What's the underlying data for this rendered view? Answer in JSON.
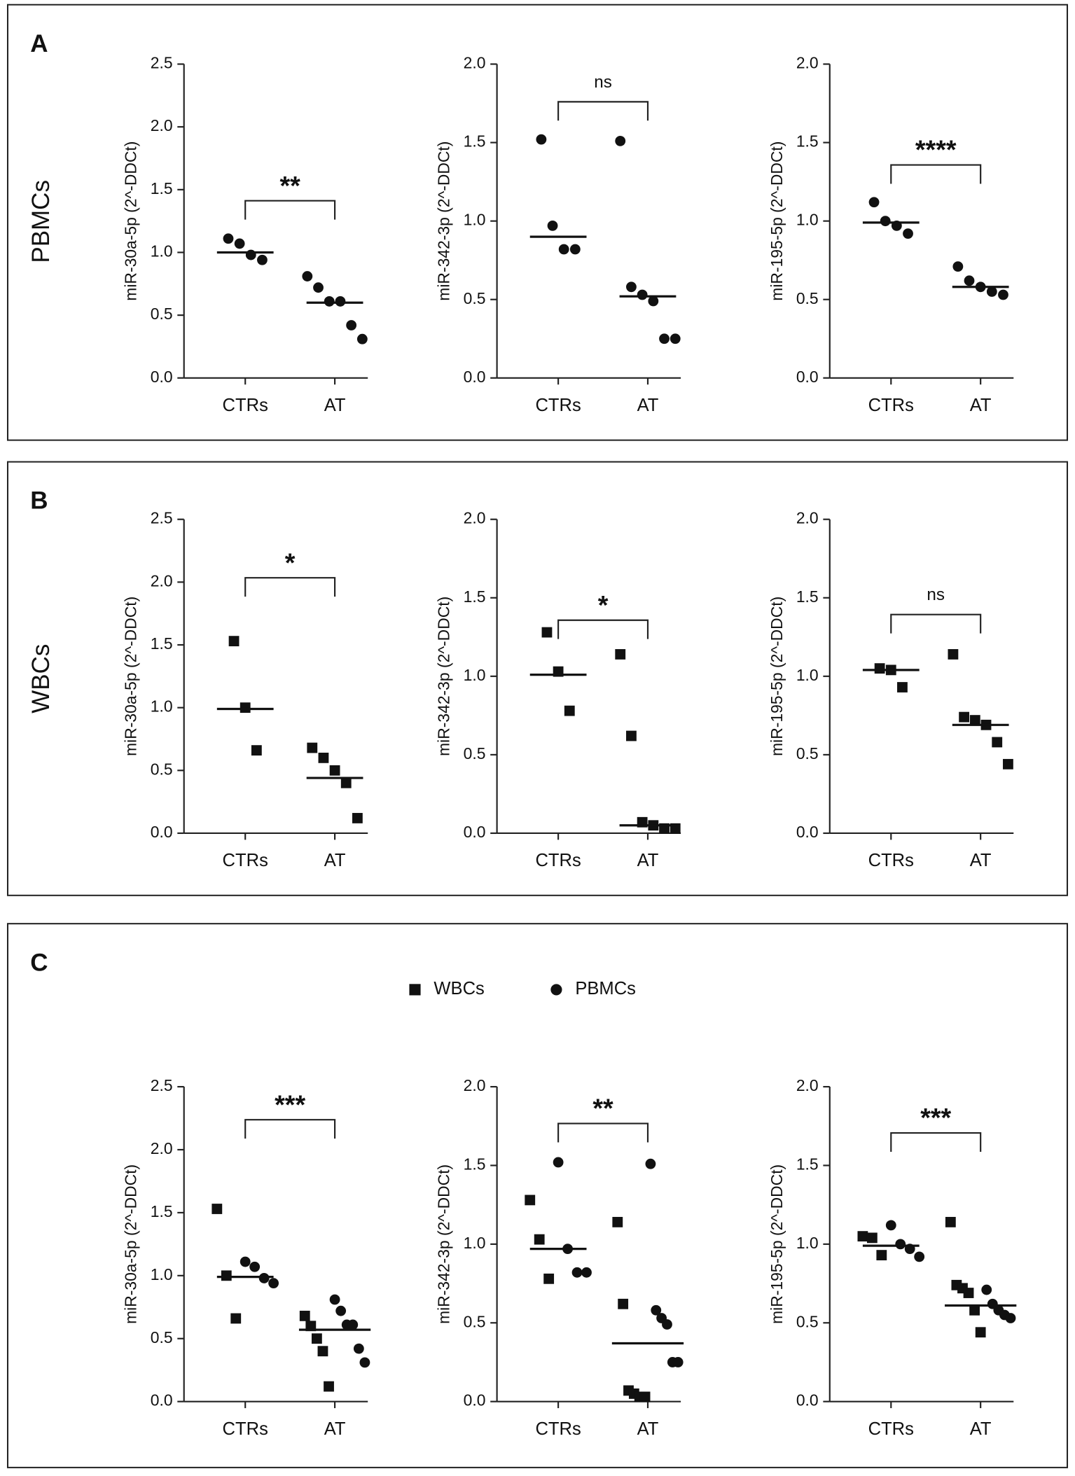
{
  "panels": [
    {
      "label": "A",
      "row_label": "PBMCs"
    },
    {
      "label": "B",
      "row_label": "WBCs"
    },
    {
      "label": "C",
      "legend": [
        {
          "name": "WBCs",
          "marker": "square"
        },
        {
          "name": "PBMCs",
          "marker": "circle"
        }
      ]
    }
  ],
  "chart_data": [
    {
      "type": "dot",
      "ylabel": "miR-30a-5p (2^-DDCt)",
      "categories": [
        "CTRs",
        "AT"
      ],
      "ylim": [
        0,
        2.5
      ],
      "yticks": [
        {
          "value": 0,
          "label": "0.0"
        },
        0.5,
        {
          "value": 1,
          "label": "1.0"
        },
        1.5,
        {
          "value": 2,
          "label": "2.0"
        },
        2.5
      ],
      "series": [
        {
          "marker": "circle",
          "values": [
            [
              1.11,
              1.07,
              0.98,
              0.94
            ],
            [
              0.81,
              0.72,
              0.61,
              0.61,
              0.42,
              0.31
            ]
          ]
        }
      ],
      "medians": [
        1.0,
        0.6
      ],
      "significance": "**"
    },
    {
      "type": "dot",
      "ylabel": "miR-342-3p (2^-DDCt)",
      "categories": [
        "CTRs",
        "AT"
      ],
      "ylim": [
        0,
        2
      ],
      "yticks": [
        {
          "value": 0,
          "label": "0.0"
        },
        0.5,
        {
          "value": 1,
          "label": "1.0"
        },
        1.5,
        {
          "value": 2,
          "label": "2.0"
        }
      ],
      "series": [
        {
          "marker": "circle",
          "values": [
            [
              1.52,
              0.97,
              0.82,
              0.82
            ],
            [
              1.51,
              0.58,
              0.53,
              0.49,
              0.25,
              0.25
            ]
          ]
        }
      ],
      "medians": [
        0.9,
        0.52
      ],
      "significance": "ns"
    },
    {
      "type": "dot",
      "ylabel": "miR-195-5p (2^-DDCt)",
      "categories": [
        "CTRs",
        "AT"
      ],
      "ylim": [
        0,
        2
      ],
      "yticks": [
        {
          "value": 0,
          "label": "0.0"
        },
        0.5,
        {
          "value": 1,
          "label": "1.0"
        },
        1.5,
        {
          "value": 2,
          "label": "2.0"
        }
      ],
      "series": [
        {
          "marker": "circle",
          "values": [
            [
              1.12,
              1.0,
              0.97,
              0.92
            ],
            [
              0.71,
              0.62,
              0.58,
              0.55,
              0.53
            ]
          ]
        }
      ],
      "medians": [
        0.99,
        0.58
      ],
      "significance": "****"
    },
    {
      "type": "dot",
      "ylabel": "miR-30a-5p (2^-DDCt)",
      "categories": [
        "CTRs",
        "AT"
      ],
      "ylim": [
        0,
        2.5
      ],
      "yticks": [
        {
          "value": 0,
          "label": "0.0"
        },
        0.5,
        {
          "value": 1,
          "label": "1.0"
        },
        1.5,
        {
          "value": 2,
          "label": "2.0"
        },
        2.5
      ],
      "series": [
        {
          "marker": "square",
          "values": [
            [
              1.53,
              1.0,
              0.66
            ],
            [
              0.68,
              0.6,
              0.5,
              0.4,
              0.12
            ]
          ]
        }
      ],
      "medians": [
        0.99,
        0.44
      ],
      "significance": "*"
    },
    {
      "type": "dot",
      "ylabel": "miR-342-3p (2^-DDCt)",
      "categories": [
        "CTRs",
        "AT"
      ],
      "ylim": [
        0,
        2
      ],
      "yticks": [
        {
          "value": 0,
          "label": "0.0"
        },
        0.5,
        {
          "value": 1,
          "label": "1.0"
        },
        1.5,
        {
          "value": 2,
          "label": "2.0"
        }
      ],
      "series": [
        {
          "marker": "square",
          "values": [
            [
              1.28,
              1.03,
              0.78
            ],
            [
              1.14,
              0.62,
              0.07,
              0.05,
              0.03,
              0.03
            ]
          ]
        }
      ],
      "medians": [
        1.01,
        0.05
      ],
      "significance": "*"
    },
    {
      "type": "dot",
      "ylabel": "miR-195-5p (2^-DDCt)",
      "categories": [
        "CTRs",
        "AT"
      ],
      "ylim": [
        0,
        2
      ],
      "yticks": [
        {
          "value": 0,
          "label": "0.0"
        },
        0.5,
        {
          "value": 1,
          "label": "1.0"
        },
        1.5,
        {
          "value": 2,
          "label": "2.0"
        }
      ],
      "series": [
        {
          "marker": "square",
          "values": [
            [
              1.05,
              1.04,
              0.93
            ],
            [
              1.14,
              0.74,
              0.72,
              0.69,
              0.58,
              0.44
            ]
          ]
        }
      ],
      "medians": [
        1.04,
        0.69
      ],
      "significance": "ns"
    },
    {
      "type": "dot",
      "ylabel": "miR-30a-5p (2^-DDCt)",
      "categories": [
        "CTRs",
        "AT"
      ],
      "ylim": [
        0,
        2.5
      ],
      "yticks": [
        {
          "value": 0,
          "label": "0.0"
        },
        0.5,
        {
          "value": 1,
          "label": "1.0"
        },
        1.5,
        {
          "value": 2,
          "label": "2.0"
        },
        2.5
      ],
      "series": [
        {
          "marker": "square",
          "values": [
            [
              1.53,
              1.0,
              0.66
            ],
            [
              0.68,
              0.6,
              0.5,
              0.4,
              0.12
            ]
          ]
        },
        {
          "marker": "circle",
          "values": [
            [
              1.11,
              1.07,
              0.98,
              0.94
            ],
            [
              0.81,
              0.72,
              0.61,
              0.61,
              0.42,
              0.31
            ]
          ]
        }
      ],
      "medians": [
        0.99,
        0.57
      ],
      "significance": "***"
    },
    {
      "type": "dot",
      "ylabel": "miR-342-3p (2^-DDCt)",
      "categories": [
        "CTRs",
        "AT"
      ],
      "ylim": [
        0,
        2
      ],
      "yticks": [
        {
          "value": 0,
          "label": "0.0"
        },
        0.5,
        {
          "value": 1,
          "label": "1.0"
        },
        1.5,
        {
          "value": 2,
          "label": "2.0"
        }
      ],
      "series": [
        {
          "marker": "square",
          "values": [
            [
              1.28,
              1.03,
              0.78
            ],
            [
              1.14,
              0.62,
              0.07,
              0.05,
              0.03,
              0.03
            ]
          ]
        },
        {
          "marker": "circle",
          "values": [
            [
              1.52,
              0.97,
              0.82,
              0.82
            ],
            [
              1.51,
              0.58,
              0.53,
              0.49,
              0.25,
              0.25
            ]
          ]
        }
      ],
      "medians": [
        0.97,
        0.37
      ],
      "significance": "**"
    },
    {
      "type": "dot",
      "ylabel": "miR-195-5p (2^-DDCt)",
      "categories": [
        "CTRs",
        "AT"
      ],
      "ylim": [
        0,
        2
      ],
      "yticks": [
        {
          "value": 0,
          "label": "0.0"
        },
        0.5,
        {
          "value": 1,
          "label": "1.0"
        },
        1.5,
        {
          "value": 2,
          "label": "2.0"
        }
      ],
      "series": [
        {
          "marker": "square",
          "values": [
            [
              1.05,
              1.04,
              0.93
            ],
            [
              1.14,
              0.74,
              0.72,
              0.69,
              0.58,
              0.44
            ]
          ]
        },
        {
          "marker": "circle",
          "values": [
            [
              1.12,
              1.0,
              0.97,
              0.92
            ],
            [
              0.71,
              0.62,
              0.58,
              0.55,
              0.53
            ]
          ]
        }
      ],
      "medians": [
        0.99,
        0.61
      ],
      "significance": "***"
    }
  ]
}
